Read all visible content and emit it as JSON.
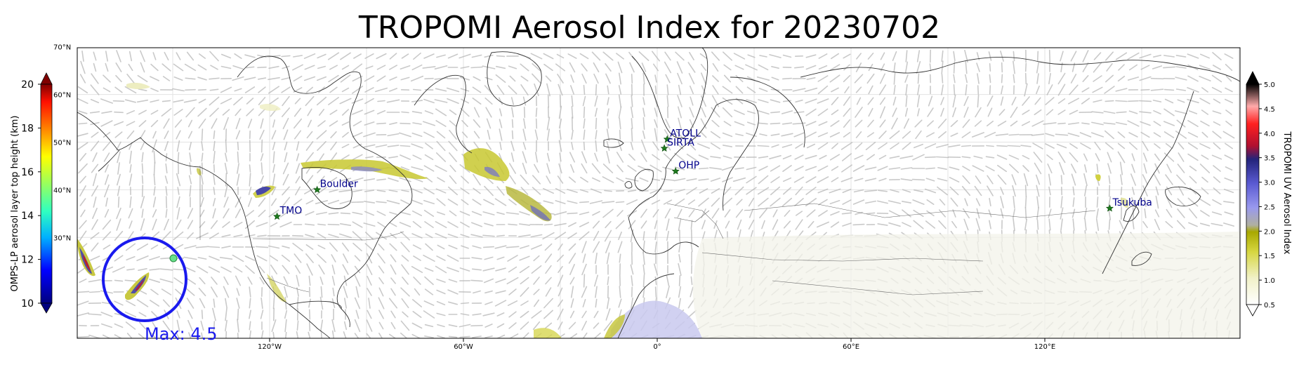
{
  "title": "TROPOMI Aerosol Index for 20230702",
  "left_colorbar": {
    "label": "OMPS-LP aerosol layer top height (km)",
    "ticks": [
      "20",
      "18",
      "16",
      "14",
      "12",
      "10"
    ],
    "range": [
      10,
      20
    ],
    "lat_labels": [
      "70°N",
      "60°N",
      "50°N",
      "40°N",
      "30°N"
    ]
  },
  "right_colorbar": {
    "label": "TROPOMI UV Aerosol Index",
    "ticks": [
      "5.0",
      "4.5",
      "4.0",
      "3.5",
      "3.0",
      "2.5",
      "2.0",
      "1.5",
      "1.0",
      "0.5"
    ],
    "range": [
      0.5,
      5.0
    ]
  },
  "map": {
    "lon_labels": [
      "120°W",
      "60°W",
      "0°",
      "60°E",
      "120°E"
    ],
    "lon_values": [
      -120,
      -60,
      0,
      60,
      120
    ]
  },
  "sites": [
    {
      "name": "ATOLL",
      "lon": 3.1,
      "lat": 50.6
    },
    {
      "name": "SIRTA",
      "lon": 2.2,
      "lat": 48.7
    },
    {
      "name": "OHP",
      "lon": 5.7,
      "lat": 43.9
    },
    {
      "name": "Boulder",
      "lon": -105.3,
      "lat": 40.0
    },
    {
      "name": "TMO",
      "lon": -117.7,
      "lat": 34.4
    },
    {
      "name": "Tsukuba",
      "lon": 140.1,
      "lat": 36.1
    }
  ],
  "annotation": {
    "max_label": "Max: 4.5",
    "circle_color": "#1a1aee"
  }
}
